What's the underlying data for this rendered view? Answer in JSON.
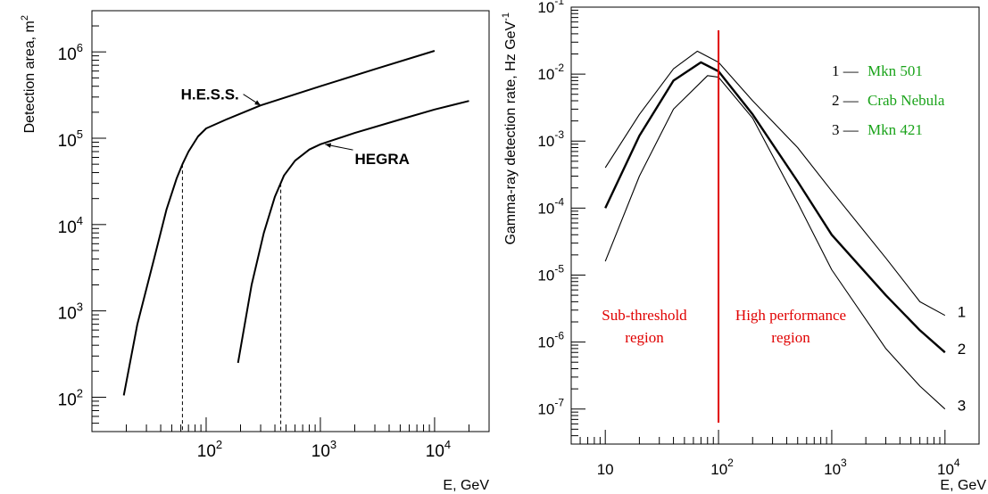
{
  "chart_data": [
    {
      "type": "line",
      "xlabel": "E, GeV",
      "ylabel": "Detection area, m",
      "ylabel_sup": "2",
      "x_scale": "log",
      "y_scale": "log",
      "xlim": [
        10,
        30000
      ],
      "ylim": [
        40,
        3000000
      ],
      "x_ticks": [
        {
          "base": "10",
          "exp": "2",
          "value": 100
        },
        {
          "base": "10",
          "exp": "3",
          "value": 1000
        },
        {
          "base": "10",
          "exp": "4",
          "value": 10000
        }
      ],
      "y_ticks": [
        {
          "base": "10",
          "exp": "2",
          "value": 100
        },
        {
          "base": "10",
          "exp": "3",
          "value": 1000
        },
        {
          "base": "10",
          "exp": "4",
          "value": 10000
        },
        {
          "base": "10",
          "exp": "5",
          "value": 100000
        },
        {
          "base": "10",
          "exp": "6",
          "value": 1000000
        }
      ],
      "grid": false,
      "series": [
        {
          "name": "H.E.S.S.",
          "x": [
            19,
            25,
            35,
            45,
            55,
            62,
            70,
            85,
            100,
            150,
            300,
            1000,
            3000,
            10000
          ],
          "y": [
            105,
            700,
            4000,
            15000,
            34000,
            50000,
            70000,
            105000,
            130000,
            165000,
            240000,
            400000,
            630000,
            1030000
          ]
        },
        {
          "name": "HEGRA",
          "x": [
            190,
            250,
            320,
            400,
            480,
            600,
            800,
            1000,
            2000,
            5000,
            10000,
            20000
          ],
          "y": [
            250,
            2000,
            8000,
            21000,
            37000,
            55000,
            74000,
            85000,
            115000,
            165000,
            215000,
            270000
          ]
        }
      ],
      "threshold_markers": [
        {
          "x": 62,
          "y": 50000
        },
        {
          "x": 450,
          "y": 30000
        }
      ],
      "annotations": [
        {
          "text": "H.E.S.S.",
          "x": 60,
          "y": 280000,
          "arrow_to_x": 300,
          "arrow_to_y": 240000
        },
        {
          "text": "HEGRA",
          "x": 2000,
          "y": 50000,
          "arrow_to_x": 1100,
          "arrow_to_y": 85000
        }
      ]
    },
    {
      "type": "line",
      "xlabel": "E, GeV",
      "ylabel": "Gamma-ray detection rate, Hz GeV",
      "ylabel_sup": "-1",
      "x_scale": "log",
      "y_scale": "log",
      "xlim": [
        5,
        20000
      ],
      "ylim": [
        3e-08,
        0.1
      ],
      "x_ticks": [
        {
          "base": "10",
          "exp": "",
          "value": 10
        },
        {
          "base": "10",
          "exp": "2",
          "value": 100
        },
        {
          "base": "10",
          "exp": "3",
          "value": 1000
        },
        {
          "base": "10",
          "exp": "4",
          "value": 10000
        }
      ],
      "y_ticks": [
        {
          "base": "10",
          "exp": "-1",
          "value": 0.1
        },
        {
          "base": "10",
          "exp": "-2",
          "value": 0.01
        },
        {
          "base": "10",
          "exp": "-3",
          "value": 0.001
        },
        {
          "base": "10",
          "exp": "-4",
          "value": 0.0001
        },
        {
          "base": "10",
          "exp": "-5",
          "value": 1e-05
        },
        {
          "base": "10",
          "exp": "-6",
          "value": 1e-06
        },
        {
          "base": "10",
          "exp": "-7",
          "value": 1e-07
        }
      ],
      "grid": false,
      "legend": {
        "placement": "top-right",
        "entries": [
          {
            "number": "1",
            "dash": "—",
            "name": "Mkn 501"
          },
          {
            "number": "2",
            "dash": "—",
            "name": "Crab Nebula"
          },
          {
            "number": "3",
            "dash": "—",
            "name": "Mkn 421"
          }
        ]
      },
      "series": [
        {
          "name": "1",
          "label": "1",
          "x": [
            10,
            20,
            40,
            65,
            100,
            200,
            500,
            1000,
            3000,
            6000,
            10000
          ],
          "y": [
            0.0004,
            0.0025,
            0.012,
            0.022,
            0.015,
            0.004,
            0.0008,
            0.00018,
            1.8e-05,
            4e-06,
            2.5e-06
          ]
        },
        {
          "name": "2",
          "label": "2",
          "x": [
            10,
            20,
            40,
            70,
            100,
            200,
            500,
            1000,
            3000,
            6000,
            10000
          ],
          "y": [
            0.0001,
            0.0012,
            0.008,
            0.015,
            0.011,
            0.0025,
            0.00025,
            4e-05,
            5e-06,
            1.5e-06,
            7e-07
          ]
        },
        {
          "name": "3",
          "label": "3",
          "x": [
            10,
            20,
            40,
            80,
            100,
            200,
            500,
            1000,
            3000,
            6000,
            10000
          ],
          "y": [
            1.6e-05,
            0.0003,
            0.003,
            0.0095,
            0.009,
            0.0022,
            0.00012,
            1.2e-05,
            8e-07,
            2.2e-07,
            1e-07
          ]
        }
      ],
      "vertical_line": {
        "x": 100,
        "color": "#e00000"
      },
      "region_labels": [
        {
          "lines": [
            "Sub-threshold",
            "region"
          ],
          "x": 25,
          "y": 2e-06
        },
        {
          "lines": [
            "High performance",
            "region"
          ],
          "x": 500,
          "y": 2e-06
        }
      ]
    }
  ],
  "colors": {
    "line": "#000000",
    "legend_text": "#1aa31a",
    "red": "#e00000"
  }
}
